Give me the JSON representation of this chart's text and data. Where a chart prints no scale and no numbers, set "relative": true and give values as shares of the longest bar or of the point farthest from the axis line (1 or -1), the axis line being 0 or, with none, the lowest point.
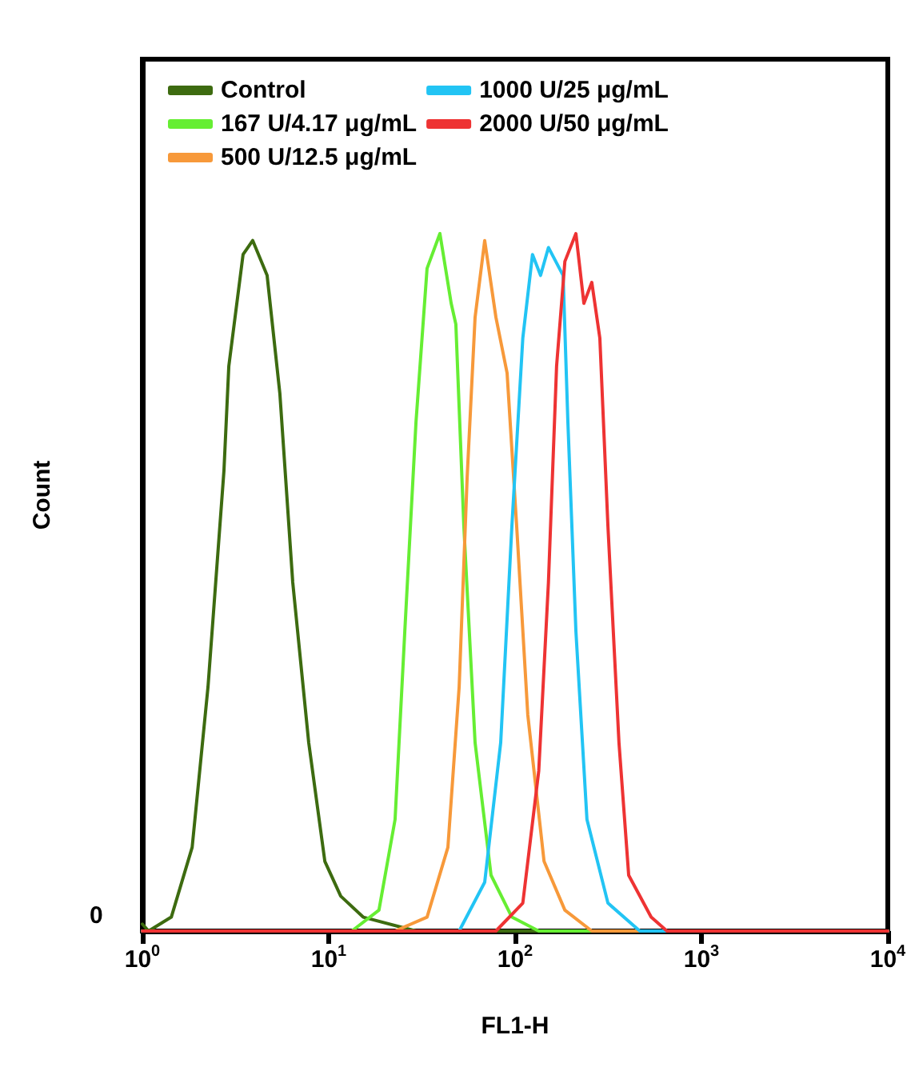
{
  "chart_data": {
    "type": "line",
    "xlabel": "FL1-H",
    "ylabel": "Count",
    "relative": true,
    "log": "x",
    "xlim": [
      1,
      10000
    ],
    "xticks": [
      {
        "value": 1,
        "label": "10$^{0}$"
      },
      {
        "value": 10,
        "label": "10$^{1}$"
      },
      {
        "value": 100,
        "label": "10$^{2}$"
      },
      {
        "value": 1000,
        "label": "10$^{3}$"
      },
      {
        "value": 10000,
        "label": "10$^{4}$"
      }
    ],
    "annotations": [
      "0"
    ],
    "legend": "top left",
    "grid": false,
    "marker": "none",
    "line_style": "solid",
    "series": [
      {
        "name": "Control",
        "color": "#3d6b10",
        "x": [
          1,
          1.08,
          1.43,
          1.85,
          2.25,
          2.74,
          2.91,
          3.47,
          3.91,
          4.67,
          5.47,
          6.41,
          7.81,
          9.53,
          11.6,
          15.3,
          29.4,
          10000
        ],
        "values": [
          0.01,
          0,
          0.02,
          0.12,
          0.35,
          0.66,
          0.81,
          0.97,
          0.99,
          0.94,
          0.77,
          0.5,
          0.27,
          0.1,
          0.05,
          0.02,
          0,
          0
        ]
      },
      {
        "name": "167 U/4.17 μg/mL",
        "color": "#66ee33",
        "x": [
          1,
          13.3,
          18.6,
          22.7,
          25.6,
          29.4,
          33.7,
          39.5,
          45.4,
          48.1,
          53.1,
          61,
          74.3,
          96.1,
          134,
          10000
        ],
        "values": [
          0,
          0,
          0.03,
          0.16,
          0.43,
          0.73,
          0.95,
          1,
          0.9,
          0.87,
          0.58,
          0.27,
          0.08,
          0.02,
          0,
          0
        ]
      },
      {
        "name": "500 U/12.5 μg/mL",
        "color": "#f7993a",
        "x": [
          1,
          22.7,
          33.7,
          43.6,
          50.1,
          55.3,
          61,
          68.7,
          78.9,
          90.6,
          102,
          117,
          143,
          185,
          258,
          10000
        ],
        "values": [
          0,
          0,
          0.02,
          0.12,
          0.35,
          0.65,
          0.88,
          0.99,
          0.88,
          0.8,
          0.58,
          0.31,
          0.1,
          0.03,
          0,
          0
        ]
      },
      {
        "name": "1000 U/25 μg/mL",
        "color": "#22c4f4",
        "x": [
          1,
          50.1,
          68.7,
          83.7,
          96.1,
          110,
          124,
          137,
          151,
          181,
          192,
          212,
          243,
          315,
          467,
          10000
        ],
        "values": [
          0,
          0,
          0.07,
          0.27,
          0.58,
          0.85,
          0.97,
          0.94,
          0.98,
          0.94,
          0.73,
          0.43,
          0.16,
          0.04,
          0,
          0
        ]
      },
      {
        "name": "2000 U/50 μg/mL",
        "color": "#ee3333",
        "x": [
          1,
          78.9,
          110,
          134,
          151,
          167,
          185,
          212,
          234,
          258,
          285,
          315,
          361,
          407,
          537,
          653,
          10000
        ],
        "values": [
          0,
          0,
          0.04,
          0.23,
          0.5,
          0.81,
          0.96,
          1,
          0.9,
          0.93,
          0.85,
          0.58,
          0.27,
          0.08,
          0.02,
          0,
          0
        ]
      }
    ]
  }
}
